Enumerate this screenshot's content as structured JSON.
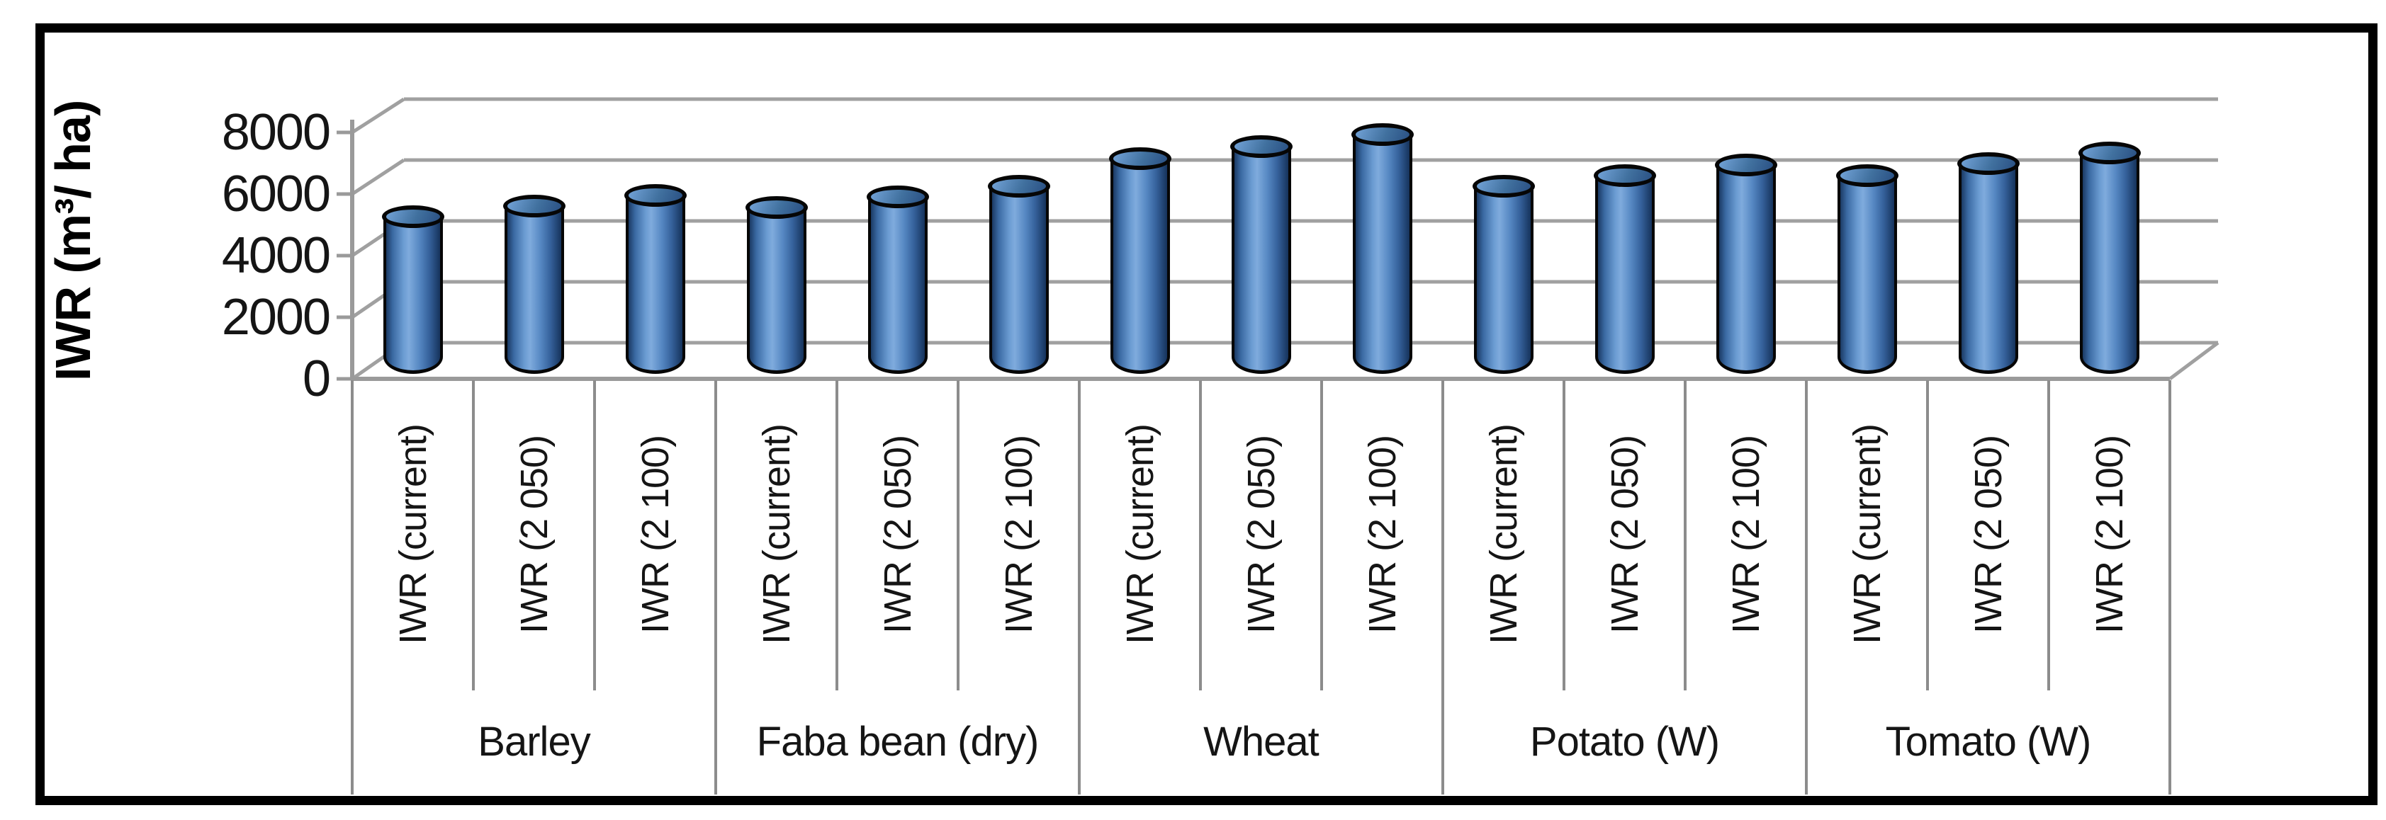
{
  "chart_data": {
    "type": "bar",
    "style": "3d-cylinder",
    "title": "",
    "xlabel": "",
    "ylabel": "IWR (m³/ ha)",
    "ylim": [
      0,
      8000
    ],
    "ytick_step": 2000,
    "yticks": [
      "0",
      "2000",
      "4000",
      "6000",
      "8000"
    ],
    "grid": true,
    "legend_position": "none",
    "bar_color": "#4F81BD",
    "bar_outline_color": "#000000",
    "gridline_color": "#a0a0a0",
    "scenario_labels": [
      "IWR (current)",
      "IWR (2 050)",
      "IWR (2 100)"
    ],
    "groups": [
      {
        "label": "Barley",
        "bars": [
          {
            "label": "IWR (current)",
            "value": 4800
          },
          {
            "label": "IWR (2 050)",
            "value": 5150
          },
          {
            "label": "IWR (2 100)",
            "value": 5500
          }
        ]
      },
      {
        "label": "Faba bean (dry)",
        "bars": [
          {
            "label": "IWR (current)",
            "value": 5100
          },
          {
            "label": "IWR (2 050)",
            "value": 5450
          },
          {
            "label": "IWR (2 100)",
            "value": 5800
          }
        ]
      },
      {
        "label": "Wheat",
        "bars": [
          {
            "label": "IWR (current)",
            "value": 6700
          },
          {
            "label": "IWR (2 050)",
            "value": 7100
          },
          {
            "label": "IWR (2 100)",
            "value": 7500
          }
        ]
      },
      {
        "label": "Potato (W)",
        "bars": [
          {
            "label": "IWR (current)",
            "value": 5800
          },
          {
            "label": "IWR (2 050)",
            "value": 6150
          },
          {
            "label": "IWR (2 100)",
            "value": 6500
          }
        ]
      },
      {
        "label": "Tomato (W)",
        "bars": [
          {
            "label": "IWR (current)",
            "value": 6150
          },
          {
            "label": "IWR (2 050)",
            "value": 6550
          },
          {
            "label": "IWR (2 100)",
            "value": 6900
          }
        ]
      }
    ]
  }
}
